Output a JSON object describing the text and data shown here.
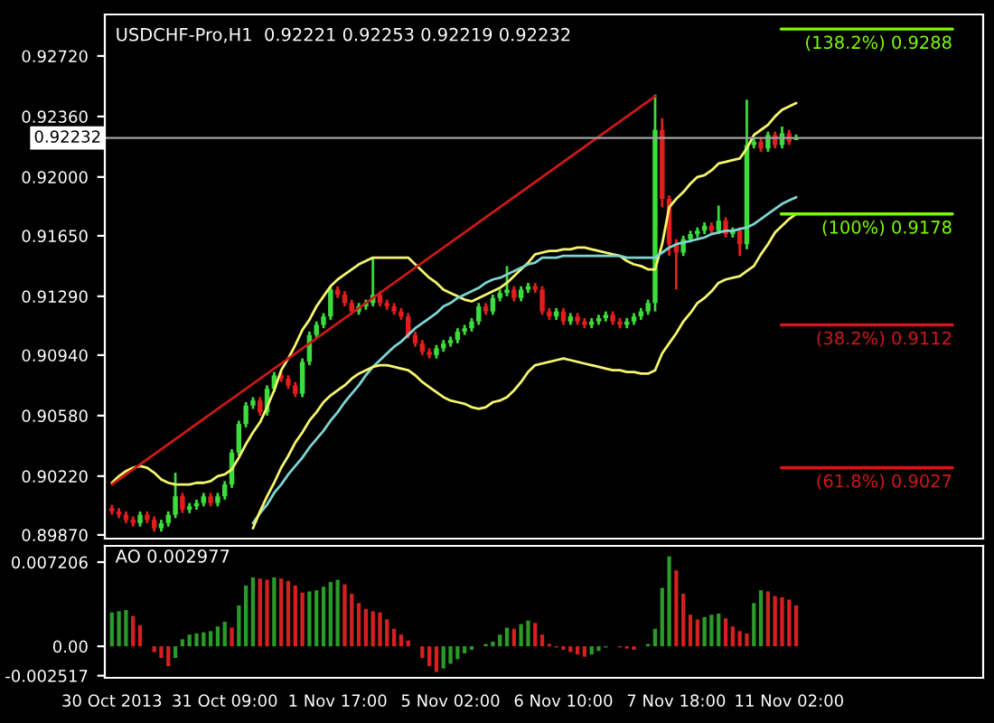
{
  "chart_data": [
    {
      "type": "candlestick",
      "title": "USDCHF-Pro,H1  0.92221 0.92253 0.92219 0.92232",
      "tick_labels": "y",
      "categories": [
        null,
        null,
        null,
        null,
        null,
        null,
        null,
        null,
        null,
        null,
        null,
        null,
        null,
        null,
        null,
        null,
        null,
        null,
        null,
        null,
        null,
        null,
        null,
        null,
        null,
        null,
        null,
        null,
        null,
        null,
        null,
        null,
        null,
        null,
        null,
        null,
        null,
        null,
        null,
        null,
        null,
        null,
        null,
        null,
        null,
        null,
        null,
        null,
        null,
        null,
        null,
        null,
        null,
        null,
        null,
        null,
        null,
        null,
        null,
        null,
        null,
        null,
        null,
        null,
        null,
        null,
        null,
        null,
        null,
        null,
        null,
        null,
        null,
        null,
        null,
        null,
        null,
        null,
        null,
        null,
        null,
        null,
        null,
        null,
        null,
        null,
        null,
        null,
        null,
        null,
        null,
        null,
        null,
        null,
        null,
        null,
        null,
        null
      ],
      "ohlc": [
        [
          0.9003,
          0.9005,
          0.8999,
          0.9001
        ],
        [
          0.9001,
          0.9003,
          0.8997,
          0.8999
        ],
        [
          0.8999,
          0.9001,
          0.8994,
          0.8996
        ],
        [
          0.8996,
          0.8998,
          0.8992,
          0.8994
        ],
        [
          0.8994,
          0.9001,
          0.8992,
          0.8999
        ],
        [
          0.8999,
          0.9001,
          0.8994,
          0.8996
        ],
        [
          0.8996,
          0.8998,
          0.8989,
          0.8991
        ],
        [
          0.8991,
          0.8996,
          0.8989,
          0.8994
        ],
        [
          0.8994,
          0.9001,
          0.8992,
          0.8999
        ],
        [
          0.8999,
          0.9024,
          0.8997,
          0.901
        ],
        [
          0.901,
          0.9012,
          0.9,
          0.9002
        ],
        [
          0.9002,
          0.9006,
          0.9,
          0.9004
        ],
        [
          0.9004,
          0.9008,
          0.9002,
          0.9006
        ],
        [
          0.9006,
          0.9012,
          0.9004,
          0.901
        ],
        [
          0.901,
          0.9012,
          0.9004,
          0.9006
        ],
        [
          0.9006,
          0.9012,
          0.9004,
          0.901
        ],
        [
          0.901,
          0.9019,
          0.9008,
          0.9017
        ],
        [
          0.9017,
          0.9038,
          0.9015,
          0.9036
        ],
        [
          0.9036,
          0.9055,
          0.9034,
          0.9053
        ],
        [
          0.9053,
          0.9066,
          0.9051,
          0.9064
        ],
        [
          0.9064,
          0.9069,
          0.9062,
          0.9067
        ],
        [
          0.9067,
          0.9069,
          0.9058,
          0.906
        ],
        [
          0.906,
          0.9076,
          0.9058,
          0.9074
        ],
        [
          0.9074,
          0.9084,
          0.9072,
          0.9082
        ],
        [
          0.9082,
          0.9084,
          0.9078,
          0.908
        ],
        [
          0.908,
          0.9082,
          0.9074,
          0.9076
        ],
        [
          0.9076,
          0.9078,
          0.9069,
          0.9071
        ],
        [
          0.9071,
          0.9092,
          0.9069,
          0.909
        ],
        [
          0.909,
          0.9108,
          0.9088,
          0.9106
        ],
        [
          0.9106,
          0.9114,
          0.9104,
          0.9112
        ],
        [
          0.9112,
          0.9119,
          0.911,
          0.9117
        ],
        [
          0.9117,
          0.9135,
          0.9115,
          0.9133
        ],
        [
          0.9133,
          0.9135,
          0.9128,
          0.913
        ],
        [
          0.913,
          0.9132,
          0.9123,
          0.9125
        ],
        [
          0.9125,
          0.9127,
          0.9118,
          0.912
        ],
        [
          0.912,
          0.9125,
          0.9118,
          0.9123
        ],
        [
          0.9123,
          0.9127,
          0.9121,
          0.9125
        ],
        [
          0.9125,
          0.9152,
          0.9123,
          0.913
        ],
        [
          0.913,
          0.9132,
          0.9123,
          0.9125
        ],
        [
          0.9125,
          0.9127,
          0.9121,
          0.9123
        ],
        [
          0.9123,
          0.9125,
          0.9118,
          0.912
        ],
        [
          0.912,
          0.9122,
          0.9115,
          0.9117
        ],
        [
          0.9117,
          0.9119,
          0.9104,
          0.9106
        ],
        [
          0.9106,
          0.9108,
          0.9099,
          0.9101
        ],
        [
          0.9101,
          0.9103,
          0.9094,
          0.9096
        ],
        [
          0.9096,
          0.9098,
          0.9092,
          0.9094
        ],
        [
          0.9094,
          0.91,
          0.9092,
          0.9098
        ],
        [
          0.9098,
          0.9103,
          0.9096,
          0.9101
        ],
        [
          0.9101,
          0.9105,
          0.9099,
          0.9103
        ],
        [
          0.9103,
          0.911,
          0.9101,
          0.9108
        ],
        [
          0.9108,
          0.9112,
          0.9106,
          0.911
        ],
        [
          0.911,
          0.9116,
          0.9108,
          0.9114
        ],
        [
          0.9114,
          0.9125,
          0.9112,
          0.9123
        ],
        [
          0.9123,
          0.9125,
          0.9118,
          0.912
        ],
        [
          0.912,
          0.913,
          0.9118,
          0.9128
        ],
        [
          0.9128,
          0.9133,
          0.9126,
          0.9131
        ],
        [
          0.9131,
          0.9147,
          0.9129,
          0.9133
        ],
        [
          0.9133,
          0.9135,
          0.9126,
          0.9128
        ],
        [
          0.9128,
          0.9135,
          0.9126,
          0.9133
        ],
        [
          0.9133,
          0.9137,
          0.9131,
          0.9135
        ],
        [
          0.9135,
          0.9137,
          0.9131,
          0.9133
        ],
        [
          0.9133,
          0.9135,
          0.9118,
          0.912
        ],
        [
          0.912,
          0.9122,
          0.9115,
          0.9117
        ],
        [
          0.9117,
          0.9122,
          0.9115,
          0.912
        ],
        [
          0.912,
          0.9122,
          0.9112,
          0.9114
        ],
        [
          0.9114,
          0.9119,
          0.9112,
          0.9117
        ],
        [
          0.9117,
          0.9119,
          0.9112,
          0.9114
        ],
        [
          0.9114,
          0.9116,
          0.911,
          0.9112
        ],
        [
          0.9112,
          0.9116,
          0.911,
          0.9114
        ],
        [
          0.9114,
          0.9118,
          0.9112,
          0.9116
        ],
        [
          0.9116,
          0.912,
          0.9114,
          0.9118
        ],
        [
          0.9118,
          0.912,
          0.9112,
          0.9114
        ],
        [
          0.9114,
          0.9116,
          0.911,
          0.9112
        ],
        [
          0.9112,
          0.9116,
          0.911,
          0.9114
        ],
        [
          0.9114,
          0.9119,
          0.9112,
          0.9117
        ],
        [
          0.9117,
          0.9122,
          0.9115,
          0.912
        ],
        [
          0.912,
          0.9127,
          0.9118,
          0.9125
        ],
        [
          0.9125,
          0.9249,
          0.912,
          0.9228
        ],
        [
          0.9228,
          0.9235,
          0.9182,
          0.9187
        ],
        [
          0.9187,
          0.9189,
          0.9153,
          0.916
        ],
        [
          0.916,
          0.9163,
          0.9133,
          0.9155
        ],
        [
          0.9155,
          0.9165,
          0.9153,
          0.9163
        ],
        [
          0.9163,
          0.9168,
          0.9161,
          0.9166
        ],
        [
          0.9166,
          0.917,
          0.9164,
          0.9168
        ],
        [
          0.9168,
          0.9173,
          0.9166,
          0.9171
        ],
        [
          0.9171,
          0.9173,
          0.9166,
          0.9168
        ],
        [
          0.9168,
          0.9183,
          0.9166,
          0.9174
        ],
        [
          0.9174,
          0.9176,
          0.9164,
          0.9166
        ],
        [
          0.9166,
          0.917,
          0.9164,
          0.9168
        ],
        [
          0.9168,
          0.917,
          0.9153,
          0.916
        ],
        [
          0.916,
          0.9246,
          0.9157,
          0.9219
        ],
        [
          0.9219,
          0.9223,
          0.9217,
          0.9221
        ],
        [
          0.9221,
          0.9223,
          0.9215,
          0.9217
        ],
        [
          0.9217,
          0.9227,
          0.9215,
          0.9225
        ],
        [
          0.9225,
          0.9227,
          0.9217,
          0.9219
        ],
        [
          0.9219,
          0.923,
          0.9217,
          0.9226
        ],
        [
          0.9226,
          0.9228,
          0.9219,
          0.9221
        ],
        [
          0.92221,
          0.92253,
          0.92219,
          0.92232
        ]
      ],
      "colors": [
        "#e01e1e",
        "#e01e1e",
        "#e01e1e",
        "#e01e1e",
        "#3cdc3c",
        "#e01e1e",
        "#e01e1e",
        "#3cdc3c",
        "#3cdc3c",
        "#3cdc3c",
        "#e01e1e",
        "#3cdc3c",
        "#3cdc3c",
        "#3cdc3c",
        "#e01e1e",
        "#3cdc3c",
        "#3cdc3c",
        "#3cdc3c",
        "#3cdc3c",
        "#3cdc3c",
        "#3cdc3c",
        "#e01e1e",
        "#3cdc3c",
        "#3cdc3c",
        "#e01e1e",
        "#e01e1e",
        "#e01e1e",
        "#3cdc3c",
        "#3cdc3c",
        "#3cdc3c",
        "#3cdc3c",
        "#3cdc3c",
        "#e01e1e",
        "#e01e1e",
        "#e01e1e",
        "#3cdc3c",
        "#3cdc3c",
        "#3cdc3c",
        "#e01e1e",
        "#e01e1e",
        "#e01e1e",
        "#e01e1e",
        "#e01e1e",
        "#e01e1e",
        "#e01e1e",
        "#e01e1e",
        "#3cdc3c",
        "#3cdc3c",
        "#3cdc3c",
        "#3cdc3c",
        "#3cdc3c",
        "#3cdc3c",
        "#3cdc3c",
        "#e01e1e",
        "#3cdc3c",
        "#3cdc3c",
        "#3cdc3c",
        "#e01e1e",
        "#3cdc3c",
        "#3cdc3c",
        "#e01e1e",
        "#e01e1e",
        "#e01e1e",
        "#3cdc3c",
        "#e01e1e",
        "#3cdc3c",
        "#e01e1e",
        "#e01e1e",
        "#3cdc3c",
        "#3cdc3c",
        "#3cdc3c",
        "#e01e1e",
        "#e01e1e",
        "#3cdc3c",
        "#3cdc3c",
        "#3cdc3c",
        "#3cdc3c",
        "#3cdc3c",
        "#e01e1e",
        "#e01e1e",
        "#e01e1e",
        "#3cdc3c",
        "#3cdc3c",
        "#3cdc3c",
        "#3cdc3c",
        "#e01e1e",
        "#3cdc3c",
        "#e01e1e",
        "#3cdc3c",
        "#e01e1e",
        "#3cdc3c",
        "#3cdc3c",
        "#e01e1e",
        "#3cdc3c",
        "#e01e1e",
        "#3cdc3c",
        "#e01e1e",
        "#3cdc3c"
      ],
      "series": [
        {
          "type": "line",
          "color": "#f5f56e",
          "values": [
            0.9018,
            0.9022,
            0.9025,
            0.9027,
            0.9028,
            0.9027,
            0.9024,
            0.902,
            0.9018,
            0.9017,
            0.9017,
            0.9017,
            0.9018,
            0.9018,
            0.9019,
            0.9022,
            0.9023,
            0.9026,
            0.9033,
            0.9041,
            0.9048,
            0.9054,
            0.9063,
            0.9073,
            0.9085,
            0.9092,
            0.91,
            0.9109,
            0.9115,
            0.9123,
            0.9129,
            0.9135,
            0.9139,
            0.9142,
            0.9145,
            0.9148,
            0.915,
            0.9152,
            0.9152,
            0.9152,
            0.9152,
            0.9152,
            0.9152,
            0.9148,
            0.9144,
            0.914,
            0.9137,
            0.9133,
            0.9131,
            0.9129,
            0.9127,
            0.9126,
            0.9128,
            0.913,
            0.9132,
            0.9134,
            0.9137,
            0.9141,
            0.9145,
            0.9149,
            0.9154,
            0.9155,
            0.9156,
            0.9156,
            0.9157,
            0.9157,
            0.9158,
            0.9158,
            0.9157,
            0.9156,
            0.9155,
            0.9154,
            0.9153,
            0.915,
            0.9148,
            0.9147,
            0.9145,
            0.9145,
            0.916,
            0.9182,
            0.9187,
            0.9191,
            0.9196,
            0.92,
            0.9201,
            0.9204,
            0.9208,
            0.9209,
            0.921,
            0.9211,
            0.9217,
            0.9225,
            0.9228,
            0.9231,
            0.9236,
            0.924,
            0.9242,
            0.9244
          ]
        },
        {
          "type": "line",
          "color": "#7fd4d4",
          "values": [
            null,
            null,
            null,
            null,
            null,
            null,
            null,
            null,
            null,
            null,
            null,
            null,
            null,
            null,
            null,
            null,
            null,
            null,
            null,
            null,
            0.8994,
            0.9,
            0.9005,
            0.9012,
            0.9017,
            0.9023,
            0.9028,
            0.9033,
            0.9039,
            0.9044,
            0.9049,
            0.9055,
            0.906,
            0.9066,
            0.9071,
            0.9076,
            0.9082,
            0.9087,
            0.9091,
            0.9095,
            0.9099,
            0.9102,
            0.9106,
            0.911,
            0.9113,
            0.9116,
            0.9119,
            0.9123,
            0.9125,
            0.9128,
            0.913,
            0.9132,
            0.9134,
            0.9137,
            0.9139,
            0.914,
            0.9142,
            0.9144,
            0.9146,
            0.9148,
            0.9149,
            0.9152,
            0.9152,
            0.9152,
            0.9153,
            0.9153,
            0.9153,
            0.9153,
            0.9153,
            0.9153,
            0.9153,
            0.9153,
            0.9153,
            0.9152,
            0.9152,
            0.9152,
            0.9152,
            0.9152,
            0.9155,
            0.9158,
            0.916,
            0.9161,
            0.9162,
            0.9163,
            0.9164,
            0.9166,
            0.9167,
            0.9168,
            0.9168,
            0.9169,
            0.917,
            0.9172,
            0.9175,
            0.9178,
            0.9181,
            0.9184,
            0.9186,
            0.9188
          ]
        },
        {
          "type": "line",
          "color": "#f5f56e",
          "values": [
            null,
            null,
            null,
            null,
            null,
            null,
            null,
            null,
            null,
            null,
            null,
            null,
            null,
            null,
            null,
            null,
            null,
            null,
            null,
            null,
            0.8991,
            0.9001,
            0.901,
            0.9018,
            0.9027,
            0.9034,
            0.9042,
            0.9048,
            0.9055,
            0.906,
            0.9066,
            0.907,
            0.9073,
            0.9076,
            0.908,
            0.9083,
            0.9085,
            0.9087,
            0.9088,
            0.9088,
            0.9087,
            0.9086,
            0.9085,
            0.9082,
            0.9078,
            0.9075,
            0.9072,
            0.9069,
            0.9067,
            0.9066,
            0.9065,
            0.9063,
            0.9062,
            0.9063,
            0.9066,
            0.9067,
            0.9069,
            0.9073,
            0.9078,
            0.9084,
            0.9088,
            0.9089,
            0.909,
            0.9091,
            0.9092,
            0.9091,
            0.909,
            0.9089,
            0.9088,
            0.9087,
            0.9086,
            0.9085,
            0.9085,
            0.9084,
            0.9084,
            0.9083,
            0.9083,
            0.9085,
            0.9095,
            0.9101,
            0.9107,
            0.9114,
            0.9119,
            0.9125,
            0.9128,
            0.9132,
            0.9137,
            0.9139,
            0.914,
            0.9141,
            0.9144,
            0.9147,
            0.9154,
            0.916,
            0.9167,
            0.9171,
            0.9175,
            0.9178
          ]
        },
        {
          "type": "line",
          "color": "#d01818",
          "values": [
            0.9017,
            null,
            null,
            null,
            null,
            null,
            null,
            null,
            null,
            null,
            null,
            null,
            null,
            null,
            null,
            null,
            null,
            null,
            null,
            null,
            null,
            null,
            null,
            null,
            null,
            null,
            null,
            null,
            null,
            null,
            null,
            null,
            null,
            null,
            null,
            null,
            null,
            null,
            null,
            null,
            null,
            null,
            null,
            null,
            null,
            null,
            null,
            null,
            null,
            null,
            null,
            null,
            null,
            null,
            null,
            null,
            null,
            null,
            null,
            null,
            null,
            null,
            null,
            null,
            null,
            null,
            null,
            null,
            null,
            null,
            null,
            null,
            null,
            null,
            null,
            null,
            null,
            0.9248,
            null,
            null,
            null,
            null,
            null,
            null,
            null,
            null,
            null,
            null,
            null,
            null,
            null,
            null,
            null,
            null,
            null,
            null,
            null,
            null
          ]
        }
      ],
      "ylim": [
        0.89848,
        0.92967
      ],
      "yticks": [
        {
          "value": 0.9272,
          "label": "0.92720"
        },
        {
          "value": 0.9236,
          "label": "0.92360"
        },
        {
          "value": 0.92,
          "label": "0.92000"
        },
        {
          "value": 0.9165,
          "label": "0.91650"
        },
        {
          "value": 0.9129,
          "label": "0.91290"
        },
        {
          "value": 0.9094,
          "label": "0.90940"
        },
        {
          "value": 0.9058,
          "label": "0.90580"
        },
        {
          "value": 0.9022,
          "label": "0.90220"
        },
        {
          "value": 0.8987,
          "label": "0.89870"
        }
      ],
      "ref_lines": [
        {
          "axis": "y",
          "value": 0.92232,
          "label": "0.92232",
          "color": "#a0a0a0"
        },
        {
          "axis": "y",
          "value": 0.9288,
          "label": "(138.2%) 0.9288",
          "color": "#7cfc00"
        },
        {
          "axis": "y",
          "value": 0.9178,
          "label": "(100%) 0.9178",
          "color": "#7cfc00"
        },
        {
          "axis": "y",
          "value": 0.9112,
          "label": "(38.2%) 0.9112",
          "color": "#d01818"
        },
        {
          "axis": "y",
          "value": 0.9027,
          "label": "(61.8%) 0.9027",
          "color": "#d01818"
        }
      ]
    },
    {
      "type": "bar",
      "title": "AO 0.002977",
      "categories": [
        "30 Oct 2013",
        null,
        null,
        null,
        null,
        null,
        null,
        null,
        null,
        null,
        null,
        null,
        null,
        null,
        null,
        null,
        "31 Oct 09:00",
        null,
        null,
        null,
        null,
        null,
        null,
        null,
        null,
        null,
        null,
        null,
        null,
        null,
        null,
        null,
        "1 Nov 17:00",
        null,
        null,
        null,
        null,
        null,
        null,
        null,
        null,
        null,
        null,
        null,
        null,
        null,
        null,
        null,
        "5 Nov 02:00",
        null,
        null,
        null,
        null,
        null,
        null,
        null,
        null,
        null,
        null,
        null,
        null,
        null,
        null,
        null,
        "6 Nov 10:00",
        null,
        null,
        null,
        null,
        null,
        null,
        null,
        null,
        null,
        null,
        null,
        null,
        null,
        null,
        null,
        "7 Nov 18:00",
        null,
        null,
        null,
        null,
        null,
        null,
        null,
        null,
        null,
        null,
        null,
        null,
        null,
        null,
        null,
        "11 Nov 02:00",
        null
      ],
      "values": [
        0.0029,
        0.003,
        0.0031,
        0.0026,
        0.0018,
        0.0,
        -0.0005,
        -0.001,
        -0.0017,
        -0.001,
        0.0006,
        0.001,
        0.0011,
        0.0012,
        0.0013,
        0.0017,
        0.0021,
        0.0016,
        0.0035,
        0.0052,
        0.0059,
        0.0058,
        0.0057,
        0.0059,
        0.0058,
        0.0056,
        0.0052,
        0.0046,
        0.0047,
        0.0048,
        0.0051,
        0.0055,
        0.0057,
        0.0053,
        0.0045,
        0.0037,
        0.0032,
        0.003,
        0.0029,
        0.0023,
        0.0015,
        0.001,
        0.0005,
        0.0,
        -0.001,
        -0.0017,
        -0.0022,
        -0.0019,
        -0.0015,
        -0.0011,
        -0.0006,
        -0.0003,
        0.0,
        0.0002,
        0.0004,
        0.001,
        0.0016,
        0.0015,
        0.0019,
        0.0022,
        0.002,
        0.001,
        0.0002,
        -0.0001,
        -0.0003,
        -0.0005,
        -0.0007,
        -0.0009,
        -0.0007,
        -0.0004,
        -0.0001,
        0.0,
        -0.0001,
        -0.0002,
        -0.0003,
        0.0,
        0.0002,
        0.0015,
        0.005,
        0.0077,
        0.0065,
        0.0045,
        0.0027,
        0.0023,
        0.0025,
        0.0027,
        0.0028,
        0.0024,
        0.0017,
        0.0013,
        0.0011,
        0.0037,
        0.0048,
        0.0047,
        0.0043,
        0.0042,
        0.004,
        0.0035
      ],
      "colors": [
        "#2a9a2a",
        "#2a9a2a",
        "#2a9a2a",
        "#d42020",
        "#d42020",
        "#d42020",
        "#d42020",
        "#d42020",
        "#d42020",
        "#2a9a2a",
        "#2a9a2a",
        "#2a9a2a",
        "#2a9a2a",
        "#2a9a2a",
        "#2a9a2a",
        "#2a9a2a",
        "#2a9a2a",
        "#d42020",
        "#2a9a2a",
        "#2a9a2a",
        "#2a9a2a",
        "#d42020",
        "#d42020",
        "#2a9a2a",
        "#d42020",
        "#d42020",
        "#d42020",
        "#d42020",
        "#2a9a2a",
        "#2a9a2a",
        "#2a9a2a",
        "#2a9a2a",
        "#2a9a2a",
        "#d42020",
        "#d42020",
        "#d42020",
        "#d42020",
        "#d42020",
        "#d42020",
        "#d42020",
        "#d42020",
        "#d42020",
        "#d42020",
        "#d42020",
        "#d42020",
        "#d42020",
        "#d42020",
        "#2a9a2a",
        "#2a9a2a",
        "#2a9a2a",
        "#2a9a2a",
        "#2a9a2a",
        "#2a9a2a",
        "#2a9a2a",
        "#2a9a2a",
        "#2a9a2a",
        "#2a9a2a",
        "#d42020",
        "#2a9a2a",
        "#2a9a2a",
        "#d42020",
        "#d42020",
        "#d42020",
        "#d42020",
        "#d42020",
        "#d42020",
        "#d42020",
        "#d42020",
        "#2a9a2a",
        "#2a9a2a",
        "#2a9a2a",
        "#2a9a2a",
        "#d42020",
        "#d42020",
        "#d42020",
        "#2a9a2a",
        "#2a9a2a",
        "#2a9a2a",
        "#2a9a2a",
        "#2a9a2a",
        "#d42020",
        "#d42020",
        "#d42020",
        "#d42020",
        "#2a9a2a",
        "#2a9a2a",
        "#2a9a2a",
        "#d42020",
        "#d42020",
        "#d42020",
        "#d42020",
        "#2a9a2a",
        "#2a9a2a",
        "#d42020",
        "#d42020",
        "#d42020",
        "#d42020",
        "#d42020"
      ],
      "ylim": [
        -0.0027,
        0.0086
      ],
      "yticks": [
        0.007206,
        {
          "value": 0,
          "label": "0.00"
        },
        -0.002517
      ]
    }
  ]
}
